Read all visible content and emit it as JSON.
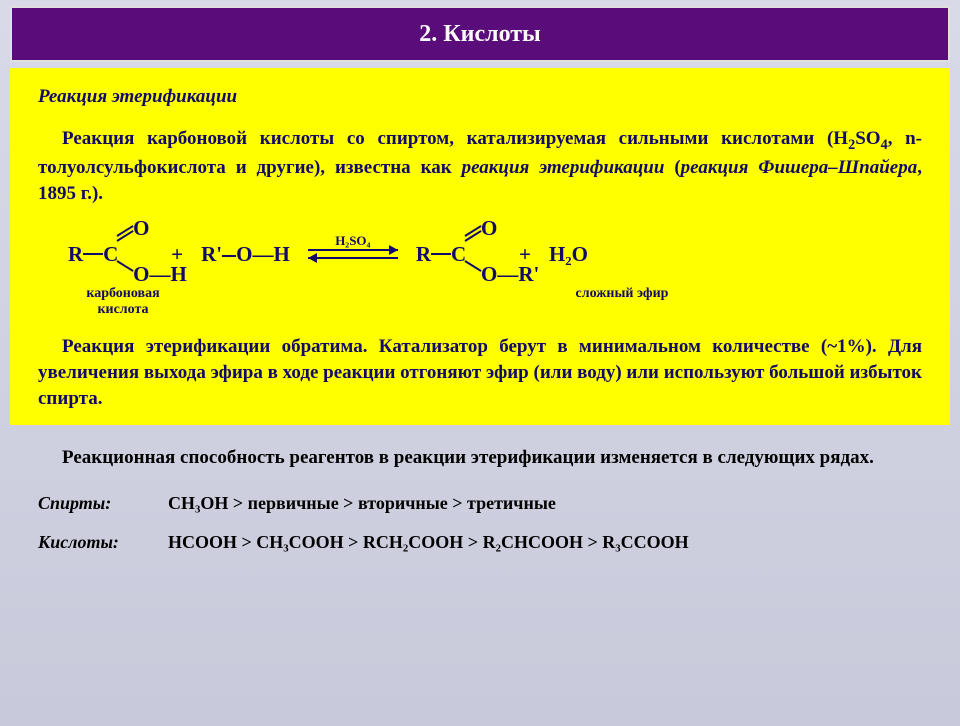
{
  "header": {
    "title": "2. Кислоты"
  },
  "section1": {
    "heading": "Реакция этерификации",
    "intro_plain_1": "Реакция карбоновой кислоты со спиртом, катализируемая сильными кислотами (H",
    "intro_sub1": "2",
    "intro_plain_2": "SO",
    "intro_sub2": "4",
    "intro_plain_3": ", n-толуолсульфокислота и другие), известна как ",
    "intro_bi_1": "реакция этерификации",
    "intro_plain_4": " (",
    "intro_bi_2": "реакция Фишера–Шпайера",
    "intro_plain_5": ", 1895 г.).",
    "equation": {
      "acid_r": "R",
      "acid_oh": "O—H",
      "roh_r": "R'",
      "roh_oh": "O—H",
      "catalyst": "H₂SO₄",
      "ester_r": "R",
      "ester_or": "O—R'",
      "water": "H₂O",
      "label_acid": "карбоновая кислота",
      "label_ester": "сложный эфир",
      "c": "C",
      "o": "O",
      "plus": "+"
    },
    "conclusion_b": "Реакция этерификации обратима.",
    "conclusion_rest": " Катализатор берут в минимальном количестве (~1%). Для увеличения выхода эфира в ходе реакции отгоняют эфир (или воду) или используют большой избыток спирта."
  },
  "section2": {
    "para": "Реакционная способность реагентов в реакции этерификации изменяется в следующих рядах.",
    "alcohols_label": "Спирты:",
    "alcohols_seq": "CH₃OH > первичные > вторичные > третичные",
    "acids_label": "Кислоты:",
    "acids_seq": "HCOOH > CH₃COOH > RCH₂COOH > R₂CHCOOH > R₃CCOOH"
  },
  "colors": {
    "header_bg": "#5a0d7a",
    "yellow": "#ffff00",
    "darkblue": "#120a66",
    "body_grad_top": "#d8dae8",
    "body_grad_bot": "#c8cadb"
  }
}
